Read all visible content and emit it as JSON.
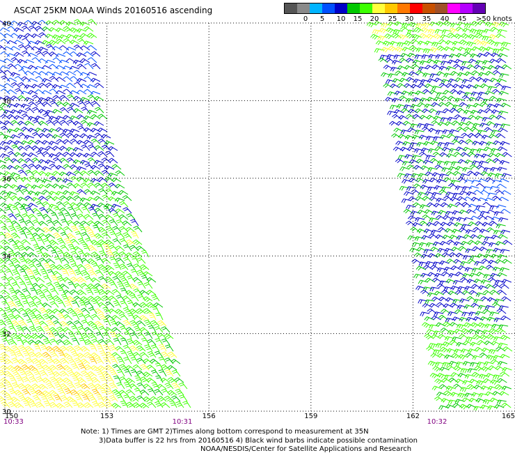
{
  "title": "ASCAT 25KM NOAA Winds 20160516 ascending",
  "legend": {
    "colors": [
      "#555555",
      "#8a8a8a",
      "#00b4ff",
      "#0050ff",
      "#0000c8",
      "#00c800",
      "#3cff00",
      "#ffff3c",
      "#ffc800",
      "#ff7800",
      "#ff0000",
      "#c85000",
      "#a05028",
      "#ff00ff",
      "#b400ff",
      "#6400b4"
    ],
    "labels": [
      "0",
      "5",
      "10",
      "15",
      "20",
      "25",
      "30",
      "35",
      "40",
      "45",
      ">50 knots"
    ]
  },
  "map": {
    "lon_ticks": [
      "150",
      "153",
      "156",
      "159",
      "162",
      "165"
    ],
    "lat_ticks": [
      "40",
      "38",
      "36",
      "34",
      "32",
      "30"
    ],
    "lon_range": [
      150,
      165
    ],
    "lat_range": [
      30,
      40
    ],
    "pass_times": [
      {
        "label": "10:33"
      },
      {
        "label": "10:31"
      },
      {
        "label": "10:32"
      }
    ]
  },
  "notes": {
    "line1": "Note: 1) Times are GMT 2)Times along bottom correspond to measurement at 35N",
    "line2": "3)Data buffer is 22 hrs from 20160516 4) Black wind barbs indicate possible contamination",
    "line3": "NOAA/NESDIS/Center for Satellite Applications and Research"
  }
}
